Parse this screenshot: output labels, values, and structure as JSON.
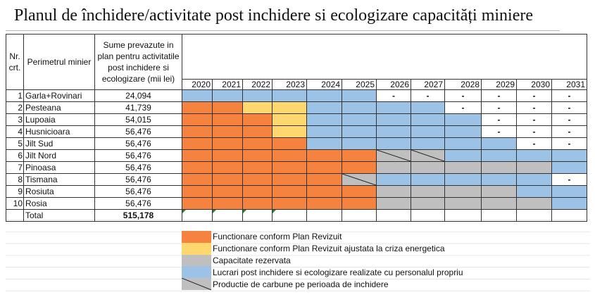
{
  "title": "Planul de închidere/activitate post inchidere si ecologizare capacități miniere",
  "headers": {
    "nr": "Nr. crt.",
    "perimeter": "Perimetrul minier",
    "sums": "Sume prevazute in plan pentru activitatile post inchidere si ecologizare (mii lei)"
  },
  "years": [
    "2020",
    "2021",
    "2022",
    "2023",
    "2024",
    "2025",
    "2026",
    "2027",
    "2028",
    "2029",
    "2030",
    "2031"
  ],
  "colors": {
    "O": "#f5823e",
    "Y": "#fed86e",
    "G": "#bfbfbf",
    "B": "#9cc2e5",
    "S": "#bfbfbf"
  },
  "rows": [
    {
      "nr": "1",
      "name": "Garla+Rovinari",
      "sum": "24,094",
      "cells": [
        "B",
        "B",
        "B",
        "B",
        "B",
        "B",
        "-",
        "-",
        "-",
        "-",
        "-",
        "-"
      ]
    },
    {
      "nr": "2",
      "name": "Pesteana",
      "sum": "41,739",
      "cells": [
        "O",
        "O",
        "Y",
        "Y",
        "B",
        "B",
        "B",
        "B",
        "-",
        "-",
        "-",
        "-"
      ]
    },
    {
      "nr": "3",
      "name": "Lupoaia",
      "sum": "54,015",
      "cells": [
        "O",
        "O",
        "O",
        "Y",
        "B",
        "B",
        "B",
        "B",
        "B",
        "-",
        "-",
        "-"
      ]
    },
    {
      "nr": "4",
      "name": "Husnicioara",
      "sum": "56,476",
      "cells": [
        "O",
        "O",
        "O",
        "Y",
        "B",
        "B",
        "B",
        "B",
        "B",
        "-",
        "-",
        "-"
      ]
    },
    {
      "nr": "5",
      "name": "Jilt Sud",
      "sum": "56,476",
      "cells": [
        "O",
        "O",
        "O",
        "O",
        "B",
        "B",
        "B",
        "B",
        "B",
        "B",
        "-",
        "-"
      ]
    },
    {
      "nr": "6",
      "name": "Jilt Nord",
      "sum": "56,476",
      "cells": [
        "O",
        "O",
        "O",
        "O",
        "O",
        "O",
        "S",
        "S",
        "B",
        "B",
        "B",
        "B"
      ]
    },
    {
      "nr": "7",
      "name": "Pinoasa",
      "sum": "56,476",
      "cells": [
        "O",
        "O",
        "O",
        "O",
        "O",
        "O",
        "G",
        "G",
        "G",
        "G",
        "G",
        "B"
      ]
    },
    {
      "nr": "8",
      "name": "Tismana",
      "sum": "56,476",
      "cells": [
        "O",
        "O",
        "O",
        "O",
        "O",
        "S",
        "B",
        "B",
        "B",
        "B",
        "B",
        "-"
      ]
    },
    {
      "nr": "9",
      "name": "Rosiuta",
      "sum": "56,476",
      "cells": [
        "O",
        "O",
        "O",
        "O",
        "O",
        "O",
        "G",
        "G",
        "G",
        "G",
        "B",
        "B"
      ]
    },
    {
      "nr": "10",
      "name": "Rosia",
      "sum": "56,476",
      "cells": [
        "O",
        "O",
        "O",
        "O",
        "O",
        "O",
        "G",
        "G",
        "G",
        "G",
        "G",
        "B"
      ]
    }
  ],
  "total": {
    "label": "Total",
    "sum": "515,178"
  },
  "legend": [
    {
      "code": "O",
      "label": "Functionare conform Plan Revizuit"
    },
    {
      "code": "Y",
      "label": "Functionare conform Plan Revizuit ajustata la criza energetica"
    },
    {
      "code": "G",
      "label": "Capacitate rezervata"
    },
    {
      "code": "B",
      "label": "Lucrari post inchidere si ecologizare realizate cu personalul propriu"
    },
    {
      "code": "S",
      "label": "Productie de carbune pe perioada de inchidere"
    }
  ]
}
